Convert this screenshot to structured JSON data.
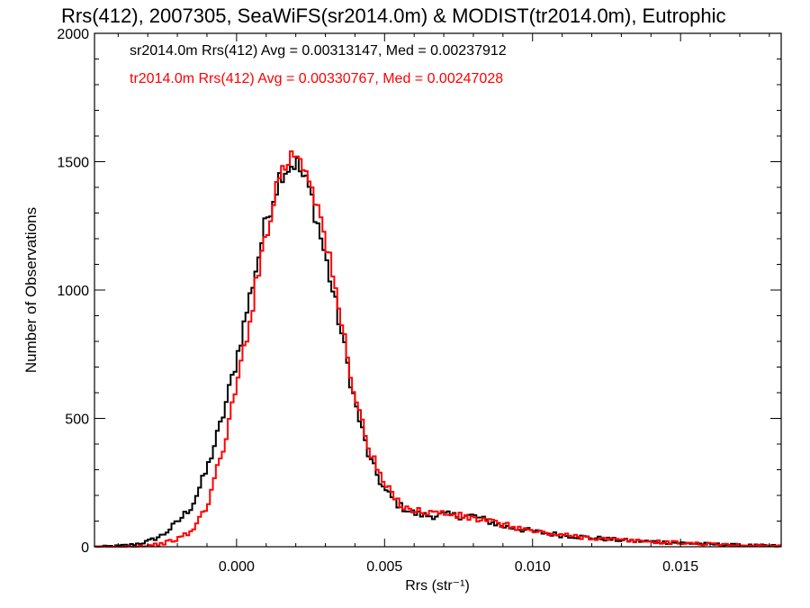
{
  "chart_data": {
    "type": "line",
    "title": "Rrs(412), 2007305, SeaWiFS(sr2014.0m) & MODIST(tr2014.0m), Eutrophic",
    "xlabel": "Rrs (str⁻¹)",
    "ylabel": "Number of Observations",
    "xlim": [
      -0.0048,
      0.0184
    ],
    "ylim": [
      0,
      2000
    ],
    "x_ticks": [
      0.0,
      0.005,
      0.01,
      0.015
    ],
    "x_tick_labels": [
      "0.000",
      "0.005",
      "0.010",
      "0.015"
    ],
    "y_ticks": [
      0,
      500,
      1000,
      1500,
      2000
    ],
    "y_tick_labels": [
      "0",
      "500",
      "1000",
      "1500",
      "2000"
    ],
    "grid": false,
    "step": true,
    "annotations": [
      {
        "text": "sr2014.0m Rrs(412) Avg = 0.00313147, Med = 0.00237912",
        "color": "#000000"
      },
      {
        "text": "tr2014.0m Rrs(412) Avg = 0.00330767, Med = 0.00247028",
        "color": "#ff0000"
      }
    ],
    "series": [
      {
        "color": "#000000",
        "x": [
          -0.0048,
          -0.004,
          -0.0035,
          -0.003,
          -0.0025,
          -0.002,
          -0.0015,
          -0.001,
          -0.0005,
          0.0,
          0.0005,
          0.001,
          0.0015,
          0.002,
          0.0025,
          0.003,
          0.0035,
          0.004,
          0.0045,
          0.005,
          0.0055,
          0.006,
          0.0065,
          0.007,
          0.0075,
          0.008,
          0.0085,
          0.009,
          0.0095,
          0.01,
          0.011,
          0.012,
          0.013,
          0.014,
          0.015,
          0.016,
          0.017,
          0.018,
          0.0184
        ],
        "y": [
          0,
          3,
          8,
          20,
          45,
          95,
          160,
          300,
          490,
          730,
          1000,
          1270,
          1460,
          1500,
          1380,
          1130,
          860,
          560,
          340,
          220,
          160,
          130,
          120,
          125,
          120,
          120,
          100,
          80,
          70,
          60,
          45,
          35,
          25,
          20,
          15,
          10,
          6,
          4,
          3
        ]
      },
      {
        "color": "#ff0000",
        "x": [
          -0.0048,
          -0.004,
          -0.0035,
          -0.003,
          -0.0025,
          -0.002,
          -0.0015,
          -0.001,
          -0.0005,
          0.0,
          0.0005,
          0.001,
          0.0015,
          0.002,
          0.0025,
          0.003,
          0.0035,
          0.004,
          0.0045,
          0.005,
          0.0055,
          0.006,
          0.0065,
          0.007,
          0.0075,
          0.008,
          0.0085,
          0.009,
          0.0095,
          0.01,
          0.011,
          0.012,
          0.013,
          0.014,
          0.015,
          0.016,
          0.017,
          0.018,
          0.0184
        ],
        "y": [
          0,
          0,
          2,
          5,
          12,
          30,
          60,
          160,
          360,
          620,
          920,
          1230,
          1470,
          1540,
          1440,
          1200,
          900,
          590,
          370,
          240,
          170,
          140,
          135,
          130,
          120,
          110,
          100,
          85,
          75,
          60,
          45,
          35,
          25,
          20,
          15,
          10,
          6,
          4,
          3
        ]
      }
    ]
  }
}
